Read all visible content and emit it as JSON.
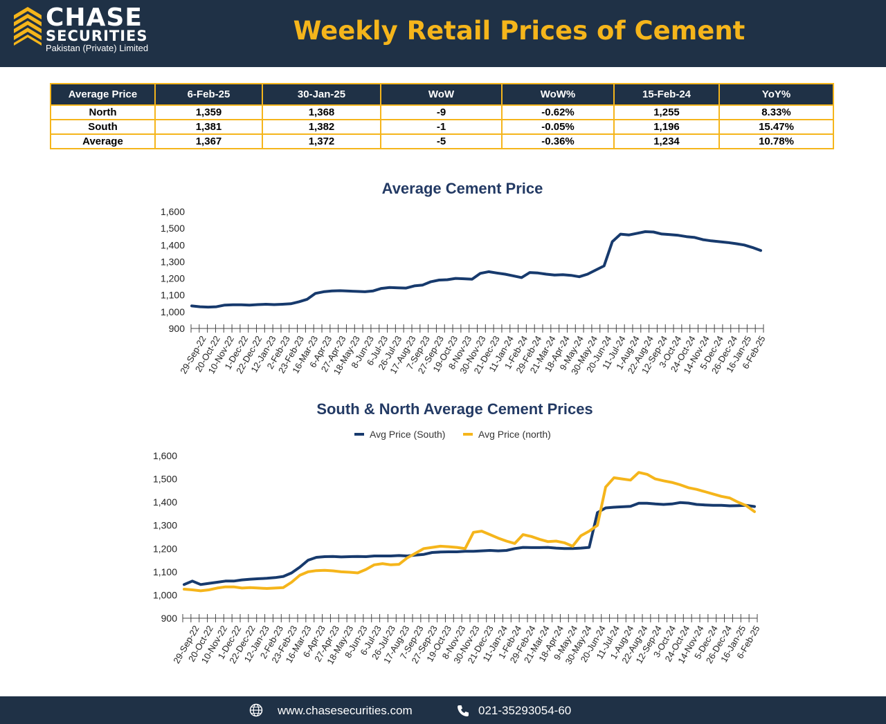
{
  "header": {
    "brand_line1": "CHASE",
    "brand_line2": "SECURITIES",
    "brand_line3": "Pakistan (Private) Limited",
    "title": "Weekly Retail Prices of Cement",
    "logo_icon": "chase-logo-icon"
  },
  "colors": {
    "navy": "#1f3146",
    "gold": "#f5b51b",
    "south_line": "#173a6d",
    "north_line": "#f5b51b"
  },
  "table": {
    "headers": [
      "Average Price",
      "6-Feb-25",
      "30-Jan-25",
      "WoW",
      "WoW%",
      "15-Feb-24",
      "YoY%"
    ],
    "rows": [
      [
        "North",
        "1,359",
        "1,368",
        "-9",
        "-0.62%",
        "1,255",
        "8.33%"
      ],
      [
        "South",
        "1,381",
        "1,382",
        "-1",
        "-0.05%",
        "1,196",
        "15.47%"
      ],
      [
        "Average",
        "1,367",
        "1,372",
        "-5",
        "-0.36%",
        "1,234",
        "10.78%"
      ]
    ]
  },
  "chart_data": [
    {
      "type": "line",
      "title": "Average Cement Price",
      "xlabel": "",
      "ylabel": "",
      "ylim": [
        900,
        1600
      ],
      "yticks": [
        "900",
        "1,000",
        "1,100",
        "1,200",
        "1,300",
        "1,400",
        "1,500",
        "1,600"
      ],
      "grid": false,
      "legend": "none",
      "x_tick_labels": [
        "29-Sep-22",
        "20-Oct-22",
        "10-Nov-22",
        "1-Dec-22",
        "22-Dec-22",
        "12-Jan-23",
        "2-Feb-23",
        "23-Feb-23",
        "16-Mar-23",
        "6-Apr-23",
        "27-Apr-23",
        "18-May-23",
        "8-Jun-23",
        "6-Jul-23",
        "26-Jul-23",
        "17-Aug-23",
        "7-Sep-23",
        "27-Sep-23",
        "19-Oct-23",
        "8-Nov-23",
        "30-Nov-23",
        "21-Dec-23",
        "11-Jan-24",
        "1-Feb-24",
        "29-Feb-24",
        "21-Mar-24",
        "18-Apr-24",
        "9-May-24",
        "30-May-24",
        "20-Jun-24",
        "11-Jul-24",
        "1-Aug-24",
        "22-Aug-24",
        "12-Sep-24",
        "3-Oct-24",
        "24-Oct-24",
        "14-Nov-24",
        "5-Dec-24",
        "26-Dec-24",
        "16-Jan-25",
        "6-Feb-25"
      ],
      "series": [
        {
          "color": "#173a6d",
          "values": [
            1035,
            1030,
            1028,
            1030,
            1040,
            1042,
            1042,
            1040,
            1043,
            1045,
            1043,
            1045,
            1048,
            1060,
            1075,
            1110,
            1120,
            1125,
            1126,
            1124,
            1122,
            1120,
            1125,
            1140,
            1145,
            1143,
            1142,
            1155,
            1160,
            1180,
            1190,
            1192,
            1200,
            1198,
            1195,
            1230,
            1240,
            1232,
            1225,
            1215,
            1205,
            1235,
            1232,
            1225,
            1220,
            1222,
            1218,
            1210,
            1225,
            1250,
            1275,
            1420,
            1465,
            1460,
            1470,
            1480,
            1478,
            1466,
            1462,
            1458,
            1450,
            1445,
            1432,
            1425,
            1420,
            1415,
            1408,
            1400,
            1385,
            1367
          ]
        }
      ]
    },
    {
      "type": "line",
      "title": "South & North Average Cement Prices",
      "xlabel": "",
      "ylabel": "",
      "ylim": [
        900,
        1600
      ],
      "yticks": [
        "900",
        "1,000",
        "1,100",
        "1,200",
        "1,300",
        "1,400",
        "1,500",
        "1,600"
      ],
      "grid": false,
      "legend": "top",
      "x_tick_labels": [
        "29-Sep-22",
        "20-Oct-22",
        "10-Nov-22",
        "1-Dec-22",
        "22-Dec-22",
        "12-Jan-23",
        "2-Feb-23",
        "23-Feb-23",
        "16-Mar-23",
        "6-Apr-23",
        "27-Apr-23",
        "18-May-23",
        "8-Jun-23",
        "6-Jul-23",
        "26-Jul-23",
        "17-Aug-23",
        "7-Sep-23",
        "27-Sep-23",
        "19-Oct-23",
        "8-Nov-23",
        "30-Nov-23",
        "21-Dec-23",
        "11-Jan-24",
        "1-Feb-24",
        "29-Feb-24",
        "21-Mar-24",
        "18-Apr-24",
        "9-May-24",
        "30-May-24",
        "20-Jun-24",
        "11-Jul-24",
        "1-Aug-24",
        "22-Aug-24",
        "12-Sep-24",
        "3-Oct-24",
        "24-Oct-24",
        "14-Nov-24",
        "5-Dec-24",
        "26-Dec-24",
        "16-Jan-25",
        "6-Feb-25"
      ],
      "series": [
        {
          "name": "Avg Price (South)",
          "color": "#173a6d",
          "values": [
            1045,
            1060,
            1045,
            1050,
            1055,
            1060,
            1060,
            1065,
            1068,
            1070,
            1072,
            1075,
            1080,
            1095,
            1120,
            1150,
            1162,
            1165,
            1166,
            1164,
            1165,
            1166,
            1165,
            1168,
            1168,
            1168,
            1170,
            1168,
            1172,
            1175,
            1183,
            1185,
            1186,
            1186,
            1188,
            1188,
            1190,
            1192,
            1190,
            1192,
            1200,
            1205,
            1204,
            1204,
            1205,
            1202,
            1200,
            1200,
            1202,
            1205,
            1355,
            1375,
            1378,
            1380,
            1382,
            1395,
            1395,
            1392,
            1390,
            1392,
            1398,
            1396,
            1390,
            1388,
            1386,
            1386,
            1384,
            1385,
            1386,
            1381
          ]
        },
        {
          "name": "Avg Price (north)",
          "color": "#f5b51b",
          "values": [
            1025,
            1022,
            1018,
            1022,
            1030,
            1035,
            1035,
            1030,
            1032,
            1030,
            1028,
            1030,
            1032,
            1055,
            1085,
            1100,
            1105,
            1106,
            1104,
            1100,
            1098,
            1095,
            1110,
            1130,
            1135,
            1130,
            1132,
            1160,
            1180,
            1200,
            1205,
            1210,
            1208,
            1205,
            1200,
            1270,
            1275,
            1260,
            1245,
            1232,
            1222,
            1260,
            1252,
            1240,
            1230,
            1232,
            1225,
            1210,
            1255,
            1275,
            1300,
            1465,
            1505,
            1500,
            1495,
            1528,
            1520,
            1500,
            1492,
            1485,
            1475,
            1462,
            1455,
            1445,
            1435,
            1425,
            1418,
            1400,
            1385,
            1359
          ]
        }
      ]
    }
  ],
  "footer": {
    "website": "www.chasesecurities.com",
    "phone": "021-35293054-60",
    "globe_icon": "globe-icon",
    "phone_icon": "phone-icon"
  }
}
